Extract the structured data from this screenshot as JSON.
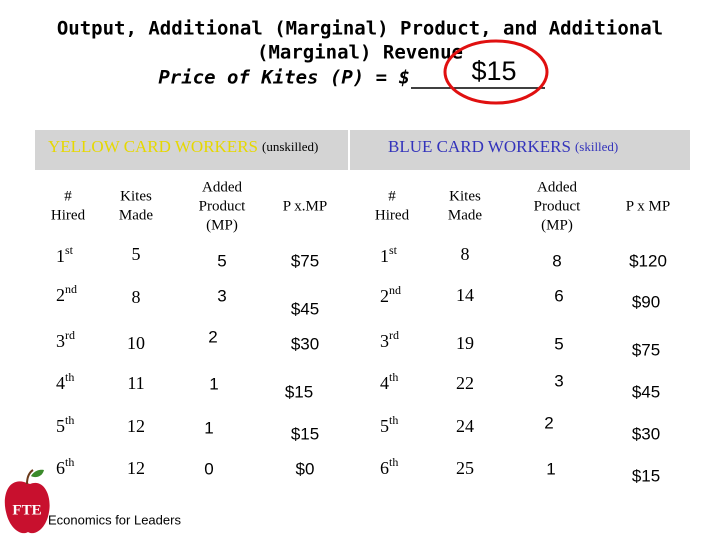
{
  "title": {
    "line1": "Output, Additional (Marginal) Product, and Additional",
    "line2": "(Marginal) Revenue",
    "price_label": "Price of Kites (P) = $",
    "price": "$15"
  },
  "tables": [
    {
      "heading": "YELLOW CARD WORKERS",
      "note": "(unskilled)",
      "columns": [
        [
          "#",
          "Hired"
        ],
        [
          "Kites",
          "Made"
        ],
        [
          "Added",
          "Product",
          "(MP)"
        ],
        [
          "P x.MP"
        ]
      ],
      "rows": [
        [
          {
            "n": "1",
            "sup": "st"
          },
          "5",
          "5",
          "$75"
        ],
        [
          {
            "n": "2",
            "sup": "nd"
          },
          "8",
          "3",
          "$45"
        ],
        [
          {
            "n": "3",
            "sup": "rd"
          },
          "10",
          "2",
          "$30"
        ],
        [
          {
            "n": "4",
            "sup": "th"
          },
          "11",
          "1",
          "$15"
        ],
        [
          {
            "n": "5",
            "sup": "th"
          },
          "12",
          "1",
          "$15"
        ],
        [
          {
            "n": "6",
            "sup": "th"
          },
          "12",
          "0",
          "$0"
        ]
      ]
    },
    {
      "heading": "BLUE CARD WORKERS",
      "note": "(skilled)",
      "columns": [
        [
          "#",
          "Hired"
        ],
        [
          "Kites",
          "Made"
        ],
        [
          "Added",
          "Product",
          "(MP)"
        ],
        [
          "P x MP"
        ]
      ],
      "rows": [
        [
          {
            "n": "1",
            "sup": "st"
          },
          "8",
          "8",
          "$120"
        ],
        [
          {
            "n": "2",
            "sup": "nd"
          },
          "14",
          "6",
          "$90"
        ],
        [
          {
            "n": "3",
            "sup": "rd"
          },
          "19",
          "5",
          "$75"
        ],
        [
          {
            "n": "4",
            "sup": "th"
          },
          "22",
          "3",
          "$45"
        ],
        [
          {
            "n": "5",
            "sup": "th"
          },
          "24",
          "2",
          "$30"
        ],
        [
          {
            "n": "6",
            "sup": "th"
          },
          "25",
          "1",
          "$15"
        ]
      ]
    }
  ],
  "footer": {
    "logo": "FTE",
    "caption": "Economics for Leaders"
  }
}
